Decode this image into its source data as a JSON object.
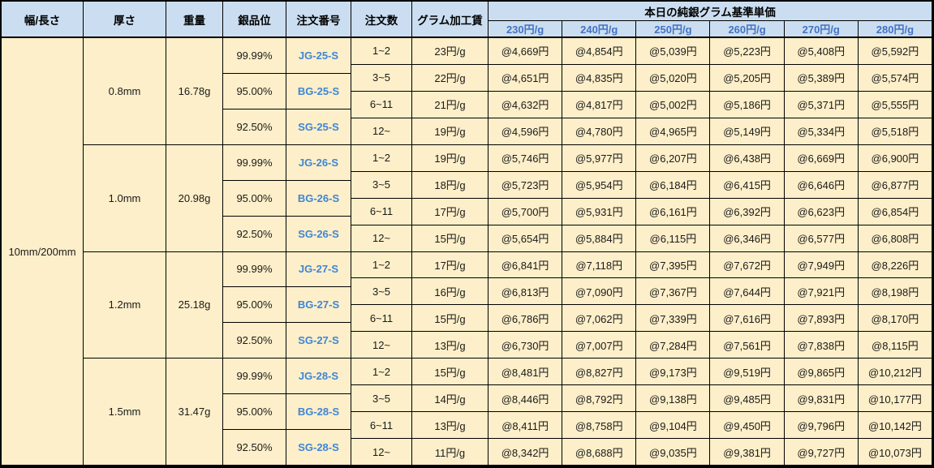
{
  "table": {
    "columns": [
      "幅/長さ",
      "厚さ",
      "重量",
      "銀品位",
      "注文番号",
      "注文数",
      "グラム加工賃"
    ],
    "price_header": "本日の純銀グラム基準単価",
    "price_columns": [
      "230円/g",
      "240円/g",
      "250円/g",
      "260円/g",
      "270円/g",
      "280円/g"
    ],
    "size": "10mm/200mm",
    "groups": [
      {
        "thickness": "0.8mm",
        "weight": "16.78g",
        "purities": [
          {
            "purity": "99.99%",
            "code": "JG-25-S"
          },
          {
            "purity": "95.00%",
            "code": "BG-25-S"
          },
          {
            "purity": "92.50%",
            "code": "SG-25-S"
          }
        ],
        "rows": [
          {
            "qty": "1~2",
            "fee": "23円/g",
            "prices": [
              "@4,669円",
              "@4,854円",
              "@5,039円",
              "@5,223円",
              "@5,408円",
              "@5,592円"
            ]
          },
          {
            "qty": "3~5",
            "fee": "22円/g",
            "prices": [
              "@4,651円",
              "@4,835円",
              "@5,020円",
              "@5,205円",
              "@5,389円",
              "@5,574円"
            ]
          },
          {
            "qty": "6~11",
            "fee": "21円/g",
            "prices": [
              "@4,632円",
              "@4,817円",
              "@5,002円",
              "@5,186円",
              "@5,371円",
              "@5,555円"
            ]
          },
          {
            "qty": "12~",
            "fee": "19円/g",
            "prices": [
              "@4,596円",
              "@4,780円",
              "@4,965円",
              "@5,149円",
              "@5,334円",
              "@5,518円"
            ]
          }
        ]
      },
      {
        "thickness": "1.0mm",
        "weight": "20.98g",
        "purities": [
          {
            "purity": "99.99%",
            "code": "JG-26-S"
          },
          {
            "purity": "95.00%",
            "code": "BG-26-S"
          },
          {
            "purity": "92.50%",
            "code": "SG-26-S"
          }
        ],
        "rows": [
          {
            "qty": "1~2",
            "fee": "19円/g",
            "prices": [
              "@5,746円",
              "@5,977円",
              "@6,207円",
              "@6,438円",
              "@6,669円",
              "@6,900円"
            ]
          },
          {
            "qty": "3~5",
            "fee": "18円/g",
            "prices": [
              "@5,723円",
              "@5,954円",
              "@6,184円",
              "@6,415円",
              "@6,646円",
              "@6,877円"
            ]
          },
          {
            "qty": "6~11",
            "fee": "17円/g",
            "prices": [
              "@5,700円",
              "@5,931円",
              "@6,161円",
              "@6,392円",
              "@6,623円",
              "@6,854円"
            ]
          },
          {
            "qty": "12~",
            "fee": "15円/g",
            "prices": [
              "@5,654円",
              "@5,884円",
              "@6,115円",
              "@6,346円",
              "@6,577円",
              "@6,808円"
            ]
          }
        ]
      },
      {
        "thickness": "1.2mm",
        "weight": "25.18g",
        "purities": [
          {
            "purity": "99.99%",
            "code": "JG-27-S"
          },
          {
            "purity": "95.00%",
            "code": "BG-27-S"
          },
          {
            "purity": "92.50%",
            "code": "SG-27-S"
          }
        ],
        "rows": [
          {
            "qty": "1~2",
            "fee": "17円/g",
            "prices": [
              "@6,841円",
              "@7,118円",
              "@7,395円",
              "@7,672円",
              "@7,949円",
              "@8,226円"
            ]
          },
          {
            "qty": "3~5",
            "fee": "16円/g",
            "prices": [
              "@6,813円",
              "@7,090円",
              "@7,367円",
              "@7,644円",
              "@7,921円",
              "@8,198円"
            ]
          },
          {
            "qty": "6~11",
            "fee": "15円/g",
            "prices": [
              "@6,786円",
              "@7,062円",
              "@7,339円",
              "@7,616円",
              "@7,893円",
              "@8,170円"
            ]
          },
          {
            "qty": "12~",
            "fee": "13円/g",
            "prices": [
              "@6,730円",
              "@7,007円",
              "@7,284円",
              "@7,561円",
              "@7,838円",
              "@8,115円"
            ]
          }
        ]
      },
      {
        "thickness": "1.5mm",
        "weight": "31.47g",
        "purities": [
          {
            "purity": "99.99%",
            "code": "JG-28-S"
          },
          {
            "purity": "95.00%",
            "code": "BG-28-S"
          },
          {
            "purity": "92.50%",
            "code": "SG-28-S"
          }
        ],
        "rows": [
          {
            "qty": "1~2",
            "fee": "15円/g",
            "prices": [
              "@8,481円",
              "@8,827円",
              "@9,173円",
              "@9,519円",
              "@9,865円",
              "@10,212円"
            ]
          },
          {
            "qty": "3~5",
            "fee": "14円/g",
            "prices": [
              "@8,446円",
              "@8,792円",
              "@9,138円",
              "@9,485円",
              "@9,831円",
              "@10,177円"
            ]
          },
          {
            "qty": "6~11",
            "fee": "13円/g",
            "prices": [
              "@8,411円",
              "@8,758円",
              "@9,104円",
              "@9,450円",
              "@9,796円",
              "@10,142円"
            ]
          },
          {
            "qty": "12~",
            "fee": "11円/g",
            "prices": [
              "@8,342円",
              "@8,688円",
              "@9,035円",
              "@9,381円",
              "@9,727円",
              "@10,073円"
            ]
          }
        ]
      }
    ]
  },
  "colors": {
    "header_bg": "#CBDEF1",
    "cell_bg": "#FDEFC9",
    "border": "#000000",
    "price_column_text": "#4472C4",
    "order_code_text": "#3E86D6"
  }
}
